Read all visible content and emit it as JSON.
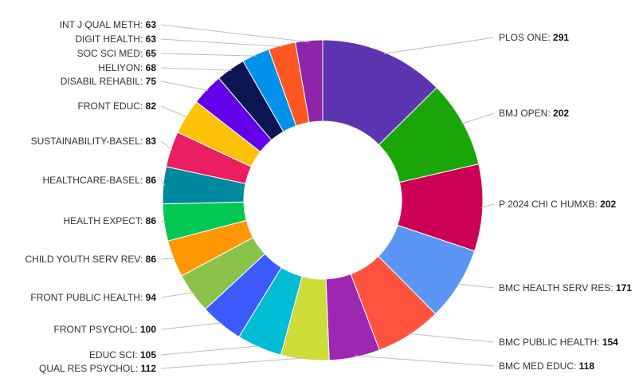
{
  "chart_data": {
    "type": "pie",
    "variant": "donut",
    "title": "",
    "legend": "none",
    "slices": [
      {
        "label": "PLOS ONE",
        "value": 291,
        "color": "#5e35b1"
      },
      {
        "label": "BMJ OPEN",
        "value": 202,
        "color": "#1aa608"
      },
      {
        "label": "P 2024 CHI C HUMXB",
        "value": 202,
        "color": "#cc0055"
      },
      {
        "label": "BMC HEALTH SERV RES",
        "value": 171,
        "color": "#5b95f5"
      },
      {
        "label": "BMC PUBLIC HEALTH",
        "value": 154,
        "color": "#ff5340"
      },
      {
        "label": "BMC MED EDUC",
        "value": 118,
        "color": "#9c27b0"
      },
      {
        "label": "QUAL RES PSYCHOL",
        "value": 112,
        "color": "#cddc39"
      },
      {
        "label": "EDUC SCI",
        "value": 105,
        "color": "#00bcd4"
      },
      {
        "label": "FRONT PSYCHOL",
        "value": 100,
        "color": "#3d5afe"
      },
      {
        "label": "FRONT PUBLIC HEALTH",
        "value": 94,
        "color": "#8bc34a"
      },
      {
        "label": "CHILD YOUTH SERV REV",
        "value": 86,
        "color": "#ff9800"
      },
      {
        "label": "HEALTH EXPECT",
        "value": 86,
        "color": "#00c853"
      },
      {
        "label": "HEALTHCARE-BASEL",
        "value": 86,
        "color": "#00899e"
      },
      {
        "label": "SUSTAINABILITY-BASEL",
        "value": 83,
        "color": "#e91e63"
      },
      {
        "label": "FRONT EDUC",
        "value": 82,
        "color": "#ffc107"
      },
      {
        "label": "DISABIL REHABIL",
        "value": 75,
        "color": "#6200ea"
      },
      {
        "label": "HELIYON",
        "value": 68,
        "color": "#0d1452"
      },
      {
        "label": "SOC SCI MED",
        "value": 65,
        "color": "#0091ea"
      },
      {
        "label": "DIGIT HEALTH",
        "value": 63,
        "color": "#ff5722"
      },
      {
        "label": "INT J QUAL METH",
        "value": 63,
        "color": "#8e24aa"
      }
    ]
  }
}
